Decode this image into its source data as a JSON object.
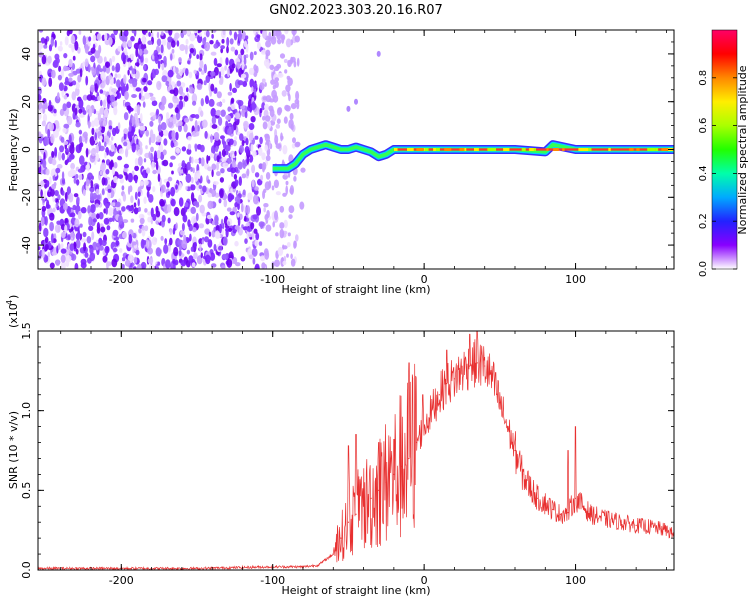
{
  "title": "GN02.2023.303.20.16.R07",
  "colorbar": {
    "label": "Normalized spectral amplitude",
    "ticks": [
      "0.0",
      "0.2",
      "0.4",
      "0.6",
      "0.8"
    ],
    "tick_values": [
      0.0,
      0.2,
      0.4,
      0.6,
      0.8
    ],
    "range": [
      0.0,
      1.0
    ],
    "colormap": [
      "#ffffff",
      "#8800ff",
      "#2222ff",
      "#00aaff",
      "#00ffaa",
      "#22ff00",
      "#aaff00",
      "#ffee00",
      "#ff8800",
      "#ff0000",
      "#ff0066"
    ]
  },
  "chart_data": [
    {
      "type": "heatmap",
      "title": "GN02.2023.303.20.16.R07",
      "xlabel": "Height of straight line (km)",
      "ylabel": "Frequency (Hz)",
      "xlim": [
        -255,
        165
      ],
      "ylim": [
        -50,
        50
      ],
      "x_ticks": [
        -200,
        -100,
        0,
        100
      ],
      "x_tick_labels": [
        "-200",
        "-100",
        "0",
        "100"
      ],
      "y_ticks": [
        40,
        20,
        0,
        -20,
        -40
      ],
      "y_tick_labels": [
        "40",
        "20",
        "0",
        "-20",
        "-40"
      ],
      "grid": false,
      "noise_region_x": [
        -255,
        -80
      ],
      "signal_track": {
        "x": [
          -100,
          -90,
          -85,
          -80,
          -75,
          -70,
          -65,
          -60,
          -55,
          -50,
          -45,
          -40,
          -35,
          -30,
          -25,
          -20,
          -10,
          0,
          20,
          40,
          60,
          80,
          85,
          100,
          130,
          165
        ],
        "frequency": [
          -8,
          -8,
          -6,
          -2,
          0,
          1,
          2,
          1,
          0,
          0,
          1,
          0,
          -1,
          -3,
          -2,
          0,
          0,
          0,
          0,
          0,
          0,
          -1,
          2,
          0,
          0,
          0
        ]
      },
      "colorbar_range": [
        0.0,
        1.0
      ]
    },
    {
      "type": "line",
      "xlabel": "Height of straight line (km)",
      "ylabel": "SNR (10 * v/v)",
      "y_multiplier_label": "(x10",
      "y_multiplier_exp": "4",
      "xlim": [
        -255,
        165
      ],
      "ylim": [
        0,
        1.5
      ],
      "x_ticks": [
        -200,
        -100,
        0,
        100
      ],
      "x_tick_labels": [
        "-200",
        "-100",
        "0",
        "100"
      ],
      "y_ticks": [
        0,
        0.5,
        1.0,
        1.5
      ],
      "y_tick_labels": [
        "0.0",
        "0.5",
        "1.0",
        "1.5"
      ],
      "grid": false,
      "series": [
        {
          "color": "#e83030",
          "x": [
            -255,
            -200,
            -150,
            -100,
            -80,
            -70,
            -60,
            -55,
            -50,
            -45,
            -40,
            -35,
            -30,
            -25,
            -20,
            -15,
            -10,
            -5,
            0,
            5,
            10,
            15,
            20,
            25,
            30,
            35,
            40,
            45,
            50,
            55,
            60,
            65,
            70,
            75,
            80,
            85,
            90,
            95,
            100,
            105,
            110,
            120,
            130,
            140,
            150,
            160,
            165
          ],
          "y": [
            0.01,
            0.01,
            0.01,
            0.02,
            0.02,
            0.03,
            0.1,
            0.2,
            0.3,
            0.35,
            0.4,
            0.45,
            0.5,
            0.55,
            0.6,
            0.65,
            0.7,
            0.8,
            0.9,
            1.0,
            1.1,
            1.17,
            1.2,
            1.25,
            1.28,
            1.3,
            1.28,
            1.2,
            1.05,
            0.9,
            0.75,
            0.6,
            0.52,
            0.45,
            0.42,
            0.38,
            0.35,
            0.36,
            0.45,
            0.4,
            0.35,
            0.32,
            0.3,
            0.28,
            0.27,
            0.25,
            0.22
          ],
          "spikes": [
            {
              "x": -50,
              "y": 0.78
            },
            {
              "x": -45,
              "y": 0.85
            },
            {
              "x": -30,
              "y": 0.8
            },
            {
              "x": -20,
              "y": 0.82
            },
            {
              "x": -10,
              "y": 1.3
            },
            {
              "x": -1,
              "y": 1.1
            },
            {
              "x": 15,
              "y": 1.38
            },
            {
              "x": 30,
              "y": 1.48
            },
            {
              "x": 35,
              "y": 1.5
            },
            {
              "x": 100,
              "y": 0.9
            },
            {
              "x": 95,
              "y": 0.75
            }
          ]
        }
      ]
    }
  ]
}
